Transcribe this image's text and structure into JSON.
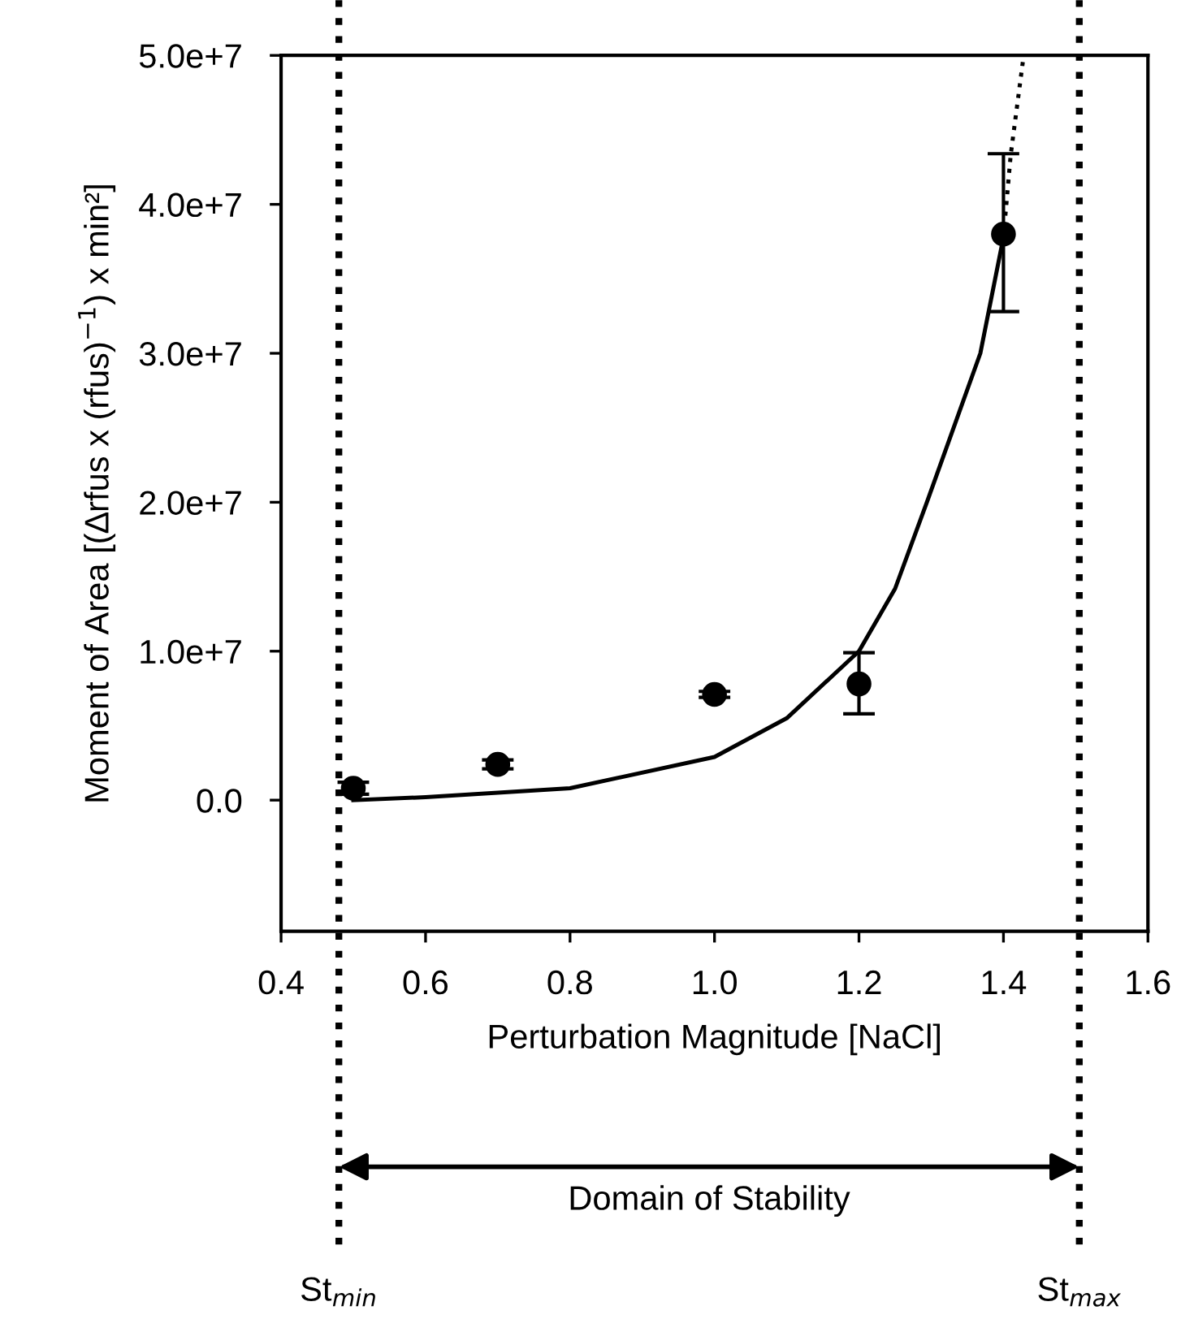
{
  "chart_data": {
    "type": "scatter",
    "xlabel": "Perturbation Magnitude [NaCl]",
    "ylabel": "Moment of Area [(∆rfus x (rfus)$^{−1}$) x min²]",
    "xlim": [
      0.4,
      1.6
    ],
    "xticks": [
      0.4,
      0.6,
      0.8,
      {
        "value": 1.0,
        "label": "1.0"
      },
      1.2,
      1.4,
      1.6
    ],
    "ylim": [
      -8800000,
      50000000
    ],
    "yticks": [
      {
        "value": 0,
        "label": "0.0"
      },
      {
        "value": 10000000,
        "label": "1.0e+7"
      },
      {
        "value": 20000000,
        "label": "2.0e+7"
      },
      {
        "value": 30000000,
        "label": "3.0e+7"
      },
      {
        "value": 40000000,
        "label": "4.0e+7"
      },
      {
        "value": 50000000,
        "label": "5.0e+7"
      }
    ],
    "series": [
      {
        "color": "#000000",
        "marker": "circle",
        "x": [
          0.5,
          0.7,
          1.0,
          1.2,
          1.4
        ],
        "values": [
          800000,
          2400000,
          7100000,
          7800000,
          38000000
        ],
        "errors": [
          400000,
          300000,
          200000,
          [
            5800000,
            9900000
          ],
          [
            32800000,
            43400000
          ]
        ]
      },
      {
        "type": "line",
        "color": "#000000",
        "line_style": "solid",
        "marker": "none",
        "x": [
          0.5,
          0.6,
          0.8,
          1.0,
          1.1,
          1.2,
          1.25,
          1.294,
          1.368,
          1.4
        ],
        "values": [
          0,
          200000,
          800000,
          2900000,
          5500000,
          10000000,
          14200000,
          20000000,
          30000000,
          37800000
        ]
      },
      {
        "type": "line",
        "color": "#000000",
        "line_style": "dotted",
        "marker": "none",
        "x": [
          1.4,
          1.41,
          1.428
        ],
        "values": [
          37800000,
          43300000,
          50000000
        ]
      }
    ],
    "ref_lines": [
      {
        "axis": "x",
        "value": 0.48,
        "label": "St$_{min}$",
        "line_style": "dotted",
        "color": "#000000"
      },
      {
        "axis": "x",
        "value": 1.505,
        "label": "St$_{max}$",
        "line_style": "dotted",
        "color": "#000000"
      }
    ],
    "annotations": [
      "Domain of Stability"
    ],
    "grid": false,
    "legend": false
  }
}
